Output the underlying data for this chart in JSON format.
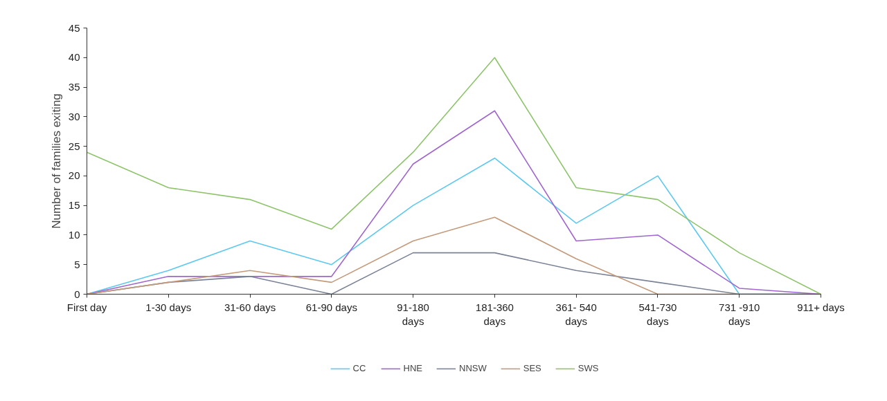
{
  "chart_data": {
    "type": "line",
    "ylabel": "Number of families exiting",
    "categories": [
      "First day",
      "1-30 days",
      "31-60 days",
      "61-90 days",
      "91-180 days",
      "181-360 days",
      "361- 540 days",
      "541-730 days",
      "731 -910 days",
      "911+ days"
    ],
    "series": [
      {
        "name": "CC",
        "color": "#5bc8f0",
        "values": [
          0,
          4,
          9,
          5,
          15,
          23,
          12,
          20,
          0,
          0
        ]
      },
      {
        "name": "HNE",
        "color": "#a066d0",
        "values": [
          0,
          3,
          3,
          3,
          22,
          31,
          9,
          10,
          1,
          0
        ]
      },
      {
        "name": "NNSW",
        "color": "#7a8296",
        "values": [
          0,
          2,
          3,
          0,
          7,
          7,
          4,
          2,
          0,
          0
        ]
      },
      {
        "name": "SES",
        "color": "#c49a7a",
        "values": [
          0,
          2,
          4,
          2,
          9,
          13,
          6,
          0,
          0,
          0
        ]
      },
      {
        "name": "SWS",
        "color": "#8dc46a",
        "values": [
          24,
          18,
          16,
          11,
          24,
          40,
          18,
          16,
          7,
          0
        ]
      }
    ],
    "ylim": [
      0,
      45
    ],
    "yticks": [
      0,
      5,
      10,
      15,
      20,
      25,
      30,
      35,
      40,
      45
    ],
    "grid": false,
    "legend": "bottom"
  }
}
